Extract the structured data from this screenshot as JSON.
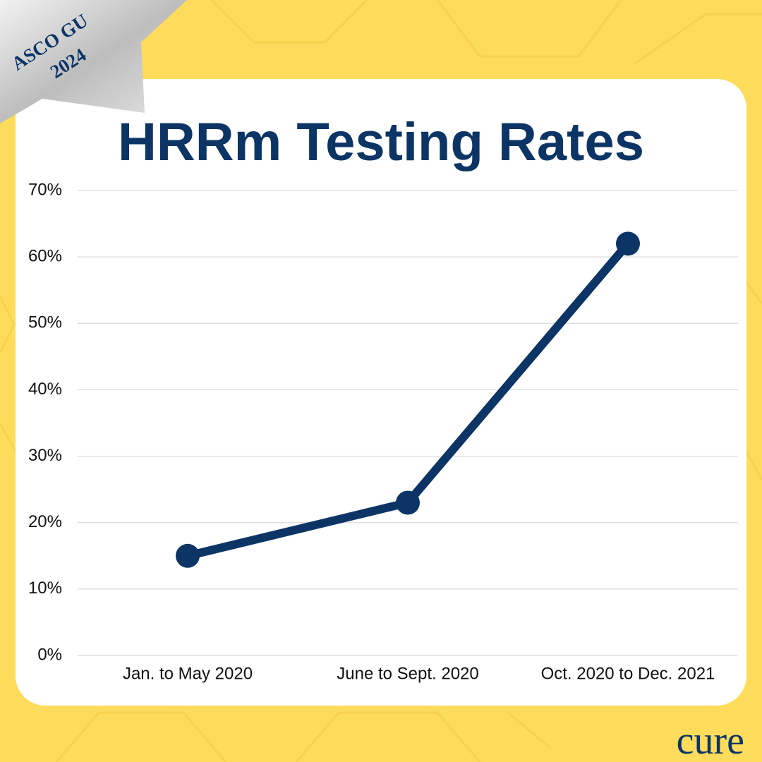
{
  "chart_data": {
    "type": "line",
    "title": "HRRm Testing Rates",
    "categories": [
      "Jan. to May 2020",
      "June to Sept. 2020",
      "Oct. 2020 to Dec. 2021"
    ],
    "values": [
      15,
      23,
      62
    ],
    "color": "#0c3566",
    "ylim": [
      0,
      70
    ],
    "yticks": [
      {
        "value": 0,
        "label": "0%"
      },
      {
        "value": 10,
        "label": "10%"
      },
      {
        "value": 20,
        "label": "20%"
      },
      {
        "value": 30,
        "label": "30%"
      },
      {
        "value": 40,
        "label": "40%"
      },
      {
        "value": 50,
        "label": "50%"
      },
      {
        "value": 60,
        "label": "60%"
      },
      {
        "value": 70,
        "label": "70%"
      }
    ],
    "grid": true,
    "annotations": [
      "ASCO GU",
      "2024",
      "cure"
    ]
  }
}
